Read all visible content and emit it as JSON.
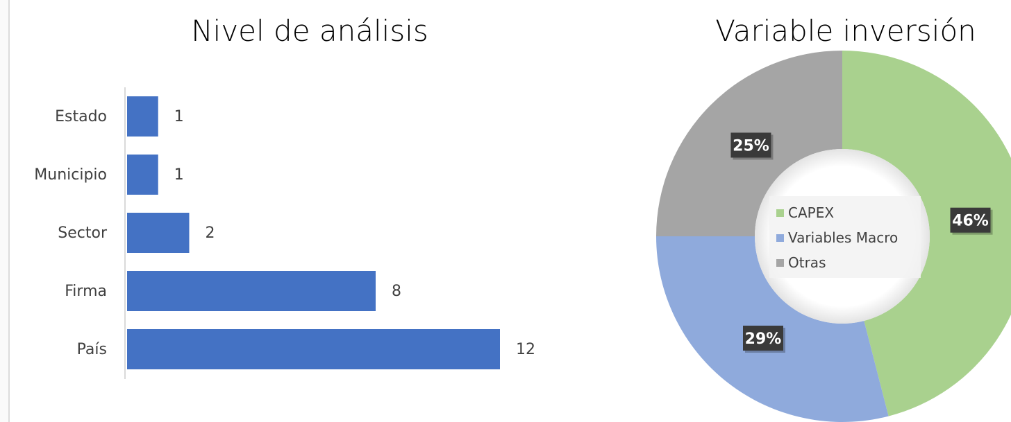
{
  "chart_data": [
    {
      "type": "bar",
      "orientation": "horizontal",
      "title": "Nivel de análisis",
      "categories": [
        "Estado",
        "Municipio",
        "Sector",
        "Firma",
        "País"
      ],
      "values": [
        1,
        1,
        2,
        8,
        12
      ],
      "data_labels": [
        "1",
        "1",
        "2",
        "8",
        "12"
      ],
      "color": "#4472C4",
      "xlim": [
        0,
        13
      ],
      "grid": false,
      "legend": "none"
    },
    {
      "type": "pie",
      "variant": "donut",
      "title": "Variable inversión",
      "categories": [
        "CAPEX",
        "Variables Macro",
        "Otras"
      ],
      "values": [
        46,
        29,
        25
      ],
      "data_labels": [
        "46%",
        "29%",
        "25%"
      ],
      "colors": [
        "#A9D18E",
        "#8FAADC",
        "#A5A5A5"
      ],
      "legend": "center"
    }
  ]
}
